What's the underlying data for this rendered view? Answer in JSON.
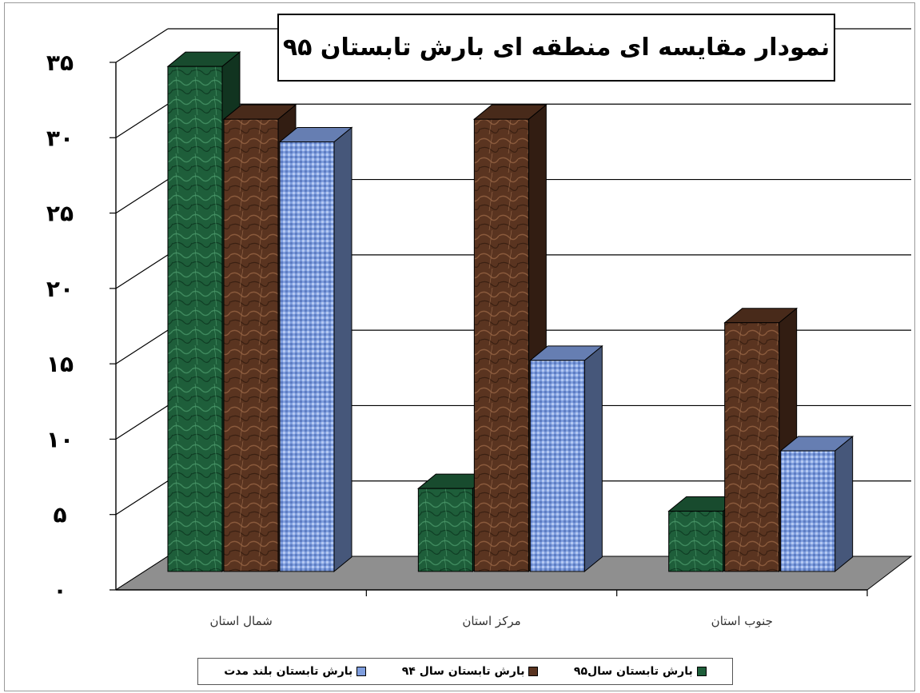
{
  "chart_data": {
    "type": "bar",
    "title": "نمودار مقایسه ای منطقه ای بارش تابستان ۹۵",
    "categories": [
      "شمال استان",
      "مرکز استان",
      "جنوب استان"
    ],
    "series": [
      {
        "name": "بارش تابستان  سال۹۵",
        "color": "#1e5e3a",
        "values": [
          33.5,
          5.5,
          4
        ]
      },
      {
        "name": "بارش تابستان سال ۹۴",
        "color": "#5a3420",
        "values": [
          30,
          30,
          16.5
        ]
      },
      {
        "name": "بارش تابستان  بلند مدت",
        "color": "#7f9ede",
        "values": [
          28.5,
          14,
          8
        ]
      }
    ],
    "ylim": [
      0,
      35
    ],
    "yticks": [
      "۰",
      "۵",
      "۱۰",
      "۱۵",
      "۲۰",
      "۲۵",
      "۳۰",
      "۳۵"
    ],
    "grid": true,
    "legend_position": "bottom"
  }
}
